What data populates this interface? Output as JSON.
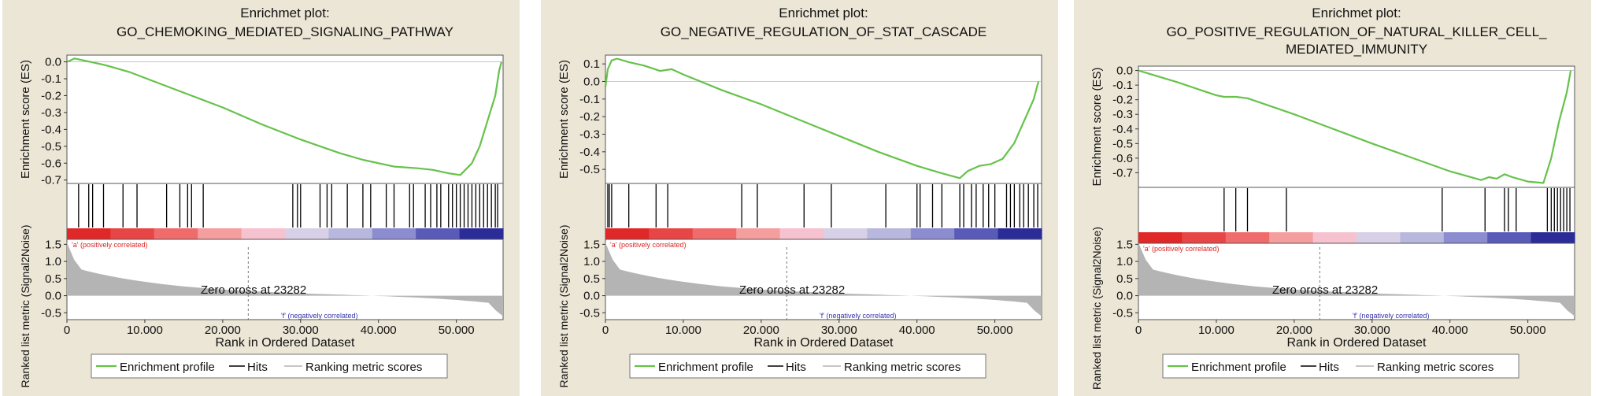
{
  "panels": [
    {
      "title_lines": [
        "Enrichmet plot:",
        "GO_CHEMOKING_MEDIATED_SIGNALING_PATHWAY"
      ],
      "es_yticks": [
        "0.0",
        "-0.1",
        "-0.2",
        "-0.3",
        "-0.4",
        "-0.5",
        "-0.6",
        "-0.7"
      ],
      "zero_cross": "Zero oross at 23282",
      "pos_label": "'a' (positively correlated)",
      "neg_label": "'f' (negatively correlated)"
    },
    {
      "title_lines": [
        "Enrichmet plot:",
        "GO_NEGATIVE_REGULATION_OF_STAT_CASCADE"
      ],
      "es_yticks": [
        "0.1",
        "0.0",
        "-0.1",
        "-0.2",
        "-0.3",
        "-0.4",
        "-0.5"
      ],
      "zero_cross": "Zero oross at 23282",
      "pos_label": "'a' (positively correlated)",
      "neg_label": "'f' (negatively correlated)"
    },
    {
      "title_lines": [
        "Enrichmet plot:",
        "GO_POSITIVE_REGULATION_OF_NATURAL_KILLER_CELL_",
        "MEDIATED_IMMUNITY"
      ],
      "es_yticks": [
        "0.0",
        "-0.1",
        "-0.2",
        "-0.3",
        "-0.4",
        "-0.5",
        "-0.6",
        "-0.7"
      ],
      "zero_cross": "Zero oross at 23282",
      "pos_label": "'a' (positively correlated)",
      "neg_label": "'f' (negatively correlated)"
    }
  ],
  "common": {
    "es_ylabel": "Enrichment score (ES)",
    "rank_ylabel": "Ranked list metric (Signal2Noise)",
    "xlabel": "Rank in Ordered Dataset",
    "xticks": [
      "0",
      "10.000",
      "20.000",
      "30.000",
      "40.000",
      "50.000"
    ],
    "rank_yticks": [
      "1.5",
      "1.0",
      "0.5",
      "0.0",
      "-0.5"
    ],
    "legend": {
      "profile": "Enrichment profile",
      "hits": "Hits",
      "metric": "Ranking metric scores"
    },
    "colors": {
      "profile": "#66c24a",
      "background": "#ece6d6",
      "metric_fill": "#b4b4b4",
      "heat": [
        "#e02828",
        "#e84646",
        "#f06b6b",
        "#f59e9e",
        "#f7c2cf",
        "#d8d0e6",
        "#b8b8de",
        "#8c8cd0",
        "#5a5ab8",
        "#2c2c98"
      ]
    }
  },
  "chart_data": [
    {
      "type": "line",
      "title": "Enrichmet plot: GO_CHEMOKING_MEDIATED_SIGNALING_PATHWAY",
      "xlabel": "Rank in Ordered Dataset",
      "ylabel": "Enrichment score (ES)",
      "xlim": [
        0,
        56000
      ],
      "ylim": [
        -0.72,
        0.04
      ],
      "series": [
        {
          "name": "Enrichment profile",
          "x": [
            0,
            1000,
            3000,
            5000,
            8000,
            12000,
            16000,
            20000,
            25000,
            30000,
            35000,
            38000,
            42000,
            45000,
            47000,
            49000,
            50500,
            52000,
            53000,
            54000,
            55000,
            55500,
            55800
          ],
          "y": [
            0.0,
            0.02,
            0.0,
            -0.02,
            -0.06,
            -0.13,
            -0.2,
            -0.27,
            -0.37,
            -0.46,
            -0.54,
            -0.58,
            -0.62,
            -0.63,
            -0.64,
            -0.66,
            -0.67,
            -0.6,
            -0.5,
            -0.35,
            -0.2,
            -0.05,
            0.0
          ]
        }
      ],
      "hits": [
        1500,
        2800,
        3300,
        4700,
        7200,
        9000,
        12800,
        14500,
        15500,
        16000,
        17500,
        29000,
        29600,
        30000,
        32500,
        33400,
        34000,
        36000,
        38000,
        39000,
        41000,
        42000,
        44000,
        44500,
        46000,
        46700,
        47500,
        48000,
        49000,
        49500,
        50000,
        50500,
        51000,
        51500,
        52000,
        52500,
        53000,
        53500,
        54000,
        54500,
        55000,
        55300
      ],
      "ranked_metric": {
        "ylim": [
          -0.7,
          1.6
        ],
        "zero_cross": 23282
      }
    },
    {
      "type": "line",
      "title": "Enrichmet plot: GO_NEGATIVE_REGULATION_OF_STAT_CASCADE",
      "xlabel": "Rank in Ordered Dataset",
      "ylabel": "Enrichment score (ES)",
      "xlim": [
        0,
        56000
      ],
      "ylim": [
        -0.58,
        0.15
      ],
      "series": [
        {
          "name": "Enrichment profile",
          "x": [
            0,
            300,
            800,
            1500,
            3000,
            5000,
            7000,
            8500,
            10000,
            15000,
            20000,
            25000,
            30000,
            35000,
            40000,
            43000,
            45500,
            46500,
            48000,
            49500,
            51000,
            52500,
            54000,
            55000,
            55600
          ],
          "y": [
            -0.03,
            0.07,
            0.12,
            0.13,
            0.11,
            0.09,
            0.06,
            0.07,
            0.04,
            -0.05,
            -0.13,
            -0.22,
            -0.31,
            -0.4,
            -0.48,
            -0.52,
            -0.55,
            -0.51,
            -0.48,
            -0.47,
            -0.44,
            -0.35,
            -0.2,
            -0.1,
            0.0
          ]
        }
      ],
      "hits": [
        300,
        500,
        800,
        3000,
        6500,
        8000,
        17500,
        19500,
        25500,
        29000,
        36000,
        40000,
        40400,
        42000,
        43200,
        45500,
        46000,
        47000,
        47600,
        48500,
        49200,
        50000,
        51500,
        52000,
        52500,
        53200,
        53700,
        54300,
        55000,
        55500
      ],
      "ranked_metric": {
        "ylim": [
          -0.7,
          1.6
        ],
        "zero_cross": 23282
      }
    },
    {
      "type": "line",
      "title": "Enrichmet plot: GO_POSITIVE_REGULATION_OF_NATURAL_KILLER_CELL_ MEDIATED_IMMUNITY",
      "xlabel": "Rank in Ordered Dataset",
      "ylabel": "Enrichment score (ES)",
      "xlim": [
        0,
        56000
      ],
      "ylim": [
        -0.8,
        0.03
      ],
      "series": [
        {
          "name": "Enrichment profile",
          "x": [
            0,
            5000,
            10000,
            11000,
            12500,
            14000,
            20000,
            30000,
            40000,
            44000,
            45000,
            46000,
            47000,
            48000,
            50000,
            52000,
            53000,
            54000,
            55000,
            55500
          ],
          "y": [
            0.0,
            -0.08,
            -0.17,
            -0.18,
            -0.18,
            -0.19,
            -0.3,
            -0.5,
            -0.69,
            -0.75,
            -0.73,
            -0.74,
            -0.71,
            -0.73,
            -0.76,
            -0.77,
            -0.6,
            -0.35,
            -0.15,
            0.0
          ]
        }
      ],
      "hits": [
        11000,
        12500,
        14000,
        19000,
        39000,
        44500,
        47000,
        47500,
        48500,
        52500,
        53000,
        53400,
        53800,
        54200,
        54600,
        55000,
        55400
      ],
      "ranked_metric": {
        "ylim": [
          -0.7,
          1.6
        ],
        "zero_cross": 23282
      }
    }
  ]
}
